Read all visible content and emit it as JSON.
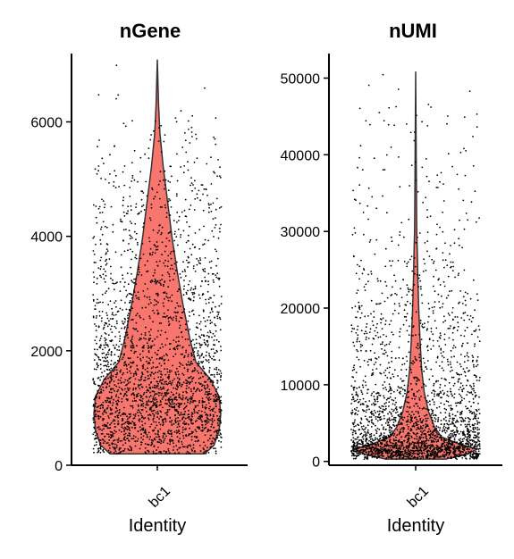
{
  "chart_data": [
    {
      "type": "violin",
      "title": "nGene",
      "xlabel": "Identity",
      "ylabel": "",
      "categories": [
        "bc1"
      ],
      "ylim": [
        0,
        7100
      ],
      "y_ticks": [
        0,
        2000,
        4000,
        6000
      ],
      "y_tick_labels": [
        "0",
        "2000",
        "4000",
        "6000"
      ],
      "grid": false,
      "legend": "none",
      "fill_color": "#f8766d",
      "point_color": "#000000",
      "violin": {
        "min": 200,
        "max": 7080,
        "profile": [
          {
            "y": 200,
            "half_width": 0.55
          },
          {
            "y": 350,
            "half_width": 0.66
          },
          {
            "y": 600,
            "half_width": 0.72
          },
          {
            "y": 900,
            "half_width": 0.74
          },
          {
            "y": 1200,
            "half_width": 0.72
          },
          {
            "y": 1500,
            "half_width": 0.62
          },
          {
            "y": 1800,
            "half_width": 0.45
          },
          {
            "y": 2200,
            "half_width": 0.38
          },
          {
            "y": 2800,
            "half_width": 0.3
          },
          {
            "y": 3400,
            "half_width": 0.23
          },
          {
            "y": 4000,
            "half_width": 0.17
          },
          {
            "y": 4600,
            "half_width": 0.12
          },
          {
            "y": 5200,
            "half_width": 0.07
          },
          {
            "y": 5800,
            "half_width": 0.03
          },
          {
            "y": 6300,
            "half_width": 0.015
          },
          {
            "y": 7080,
            "half_width": 0.0
          }
        ]
      },
      "points": {
        "n": 2600,
        "min": 200,
        "max": 7080,
        "jitter_half_width": 0.75,
        "seed": 11
      }
    },
    {
      "type": "violin",
      "title": "nUMI",
      "xlabel": "Identity",
      "ylabel": "",
      "categories": [
        "bc1"
      ],
      "ylim": [
        -500,
        52500
      ],
      "y_ticks": [
        0,
        10000,
        20000,
        30000,
        40000,
        50000
      ],
      "y_tick_labels": [
        "0",
        "10000",
        "20000",
        "30000",
        "40000",
        "50000"
      ],
      "grid": false,
      "legend": "none",
      "fill_color": "#f8766d",
      "point_color": "#000000",
      "violin": {
        "min": 300,
        "max": 50800,
        "profile": [
          {
            "y": 300,
            "half_width": 0.35
          },
          {
            "y": 900,
            "half_width": 0.58
          },
          {
            "y": 1600,
            "half_width": 0.72
          },
          {
            "y": 2300,
            "half_width": 0.5
          },
          {
            "y": 3200,
            "half_width": 0.3
          },
          {
            "y": 4500,
            "half_width": 0.22
          },
          {
            "y": 6500,
            "half_width": 0.15
          },
          {
            "y": 9000,
            "half_width": 0.1
          },
          {
            "y": 12000,
            "half_width": 0.07
          },
          {
            "y": 16000,
            "half_width": 0.05
          },
          {
            "y": 20000,
            "half_width": 0.035
          },
          {
            "y": 24000,
            "half_width": 0.025
          },
          {
            "y": 27000,
            "half_width": 0.02
          },
          {
            "y": 30000,
            "half_width": 0.012
          },
          {
            "y": 38000,
            "half_width": 0.007
          },
          {
            "y": 50800,
            "half_width": 0.0
          }
        ]
      },
      "points": {
        "n": 2600,
        "min": 300,
        "max": 50800,
        "jitter_half_width": 0.75,
        "seed": 23
      }
    }
  ]
}
